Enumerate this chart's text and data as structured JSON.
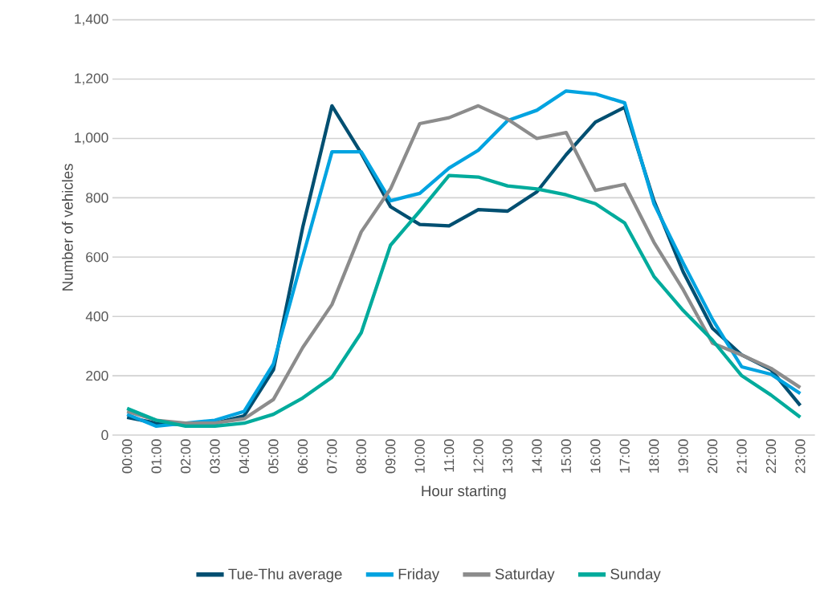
{
  "chart_data": {
    "type": "line",
    "xlabel": "Hour starting",
    "ylabel": "Number of vehicles",
    "categories": [
      "00:00",
      "01:00",
      "02:00",
      "03:00",
      "04:00",
      "05:00",
      "06:00",
      "07:00",
      "08:00",
      "09:00",
      "10:00",
      "11:00",
      "12:00",
      "13:00",
      "14:00",
      "15:00",
      "16:00",
      "17:00",
      "18:00",
      "19:00",
      "20:00",
      "21:00",
      "22:00",
      "23:00"
    ],
    "series": [
      {
        "name": "Tue-Thu average",
        "color": "#004f71",
        "values": [
          60,
          40,
          35,
          40,
          65,
          220,
          700,
          1110,
          950,
          770,
          710,
          705,
          760,
          755,
          820,
          945,
          1055,
          1105,
          790,
          550,
          360,
          270,
          220,
          100
        ]
      },
      {
        "name": "Friday",
        "color": "#00a3e0",
        "values": [
          70,
          30,
          40,
          50,
          80,
          240,
          600,
          955,
          955,
          790,
          815,
          900,
          960,
          1060,
          1095,
          1160,
          1150,
          1120,
          780,
          580,
          390,
          230,
          205,
          140
        ]
      },
      {
        "name": "Saturday",
        "color": "#8c8c8c",
        "values": [
          80,
          50,
          40,
          40,
          55,
          120,
          295,
          440,
          685,
          830,
          1050,
          1070,
          1110,
          1065,
          1000,
          1020,
          825,
          845,
          650,
          490,
          310,
          270,
          225,
          160
        ]
      },
      {
        "name": "Sunday",
        "color": "#00ab9c",
        "values": [
          90,
          50,
          30,
          30,
          40,
          70,
          125,
          195,
          345,
          640,
          755,
          875,
          870,
          840,
          830,
          810,
          780,
          715,
          535,
          420,
          320,
          200,
          135,
          60
        ]
      }
    ],
    "ylim": [
      0,
      1400
    ],
    "yticks": [
      {
        "value": 0,
        "label": "0"
      },
      {
        "value": 200,
        "label": "200"
      },
      {
        "value": 400,
        "label": "400"
      },
      {
        "value": 600,
        "label": "600"
      },
      {
        "value": 800,
        "label": "800"
      },
      {
        "value": 1000,
        "label": "1,000"
      },
      {
        "value": 1200,
        "label": "1,200"
      },
      {
        "value": 1400,
        "label": "1,400"
      }
    ],
    "grid": "y",
    "legend": "bottom"
  }
}
